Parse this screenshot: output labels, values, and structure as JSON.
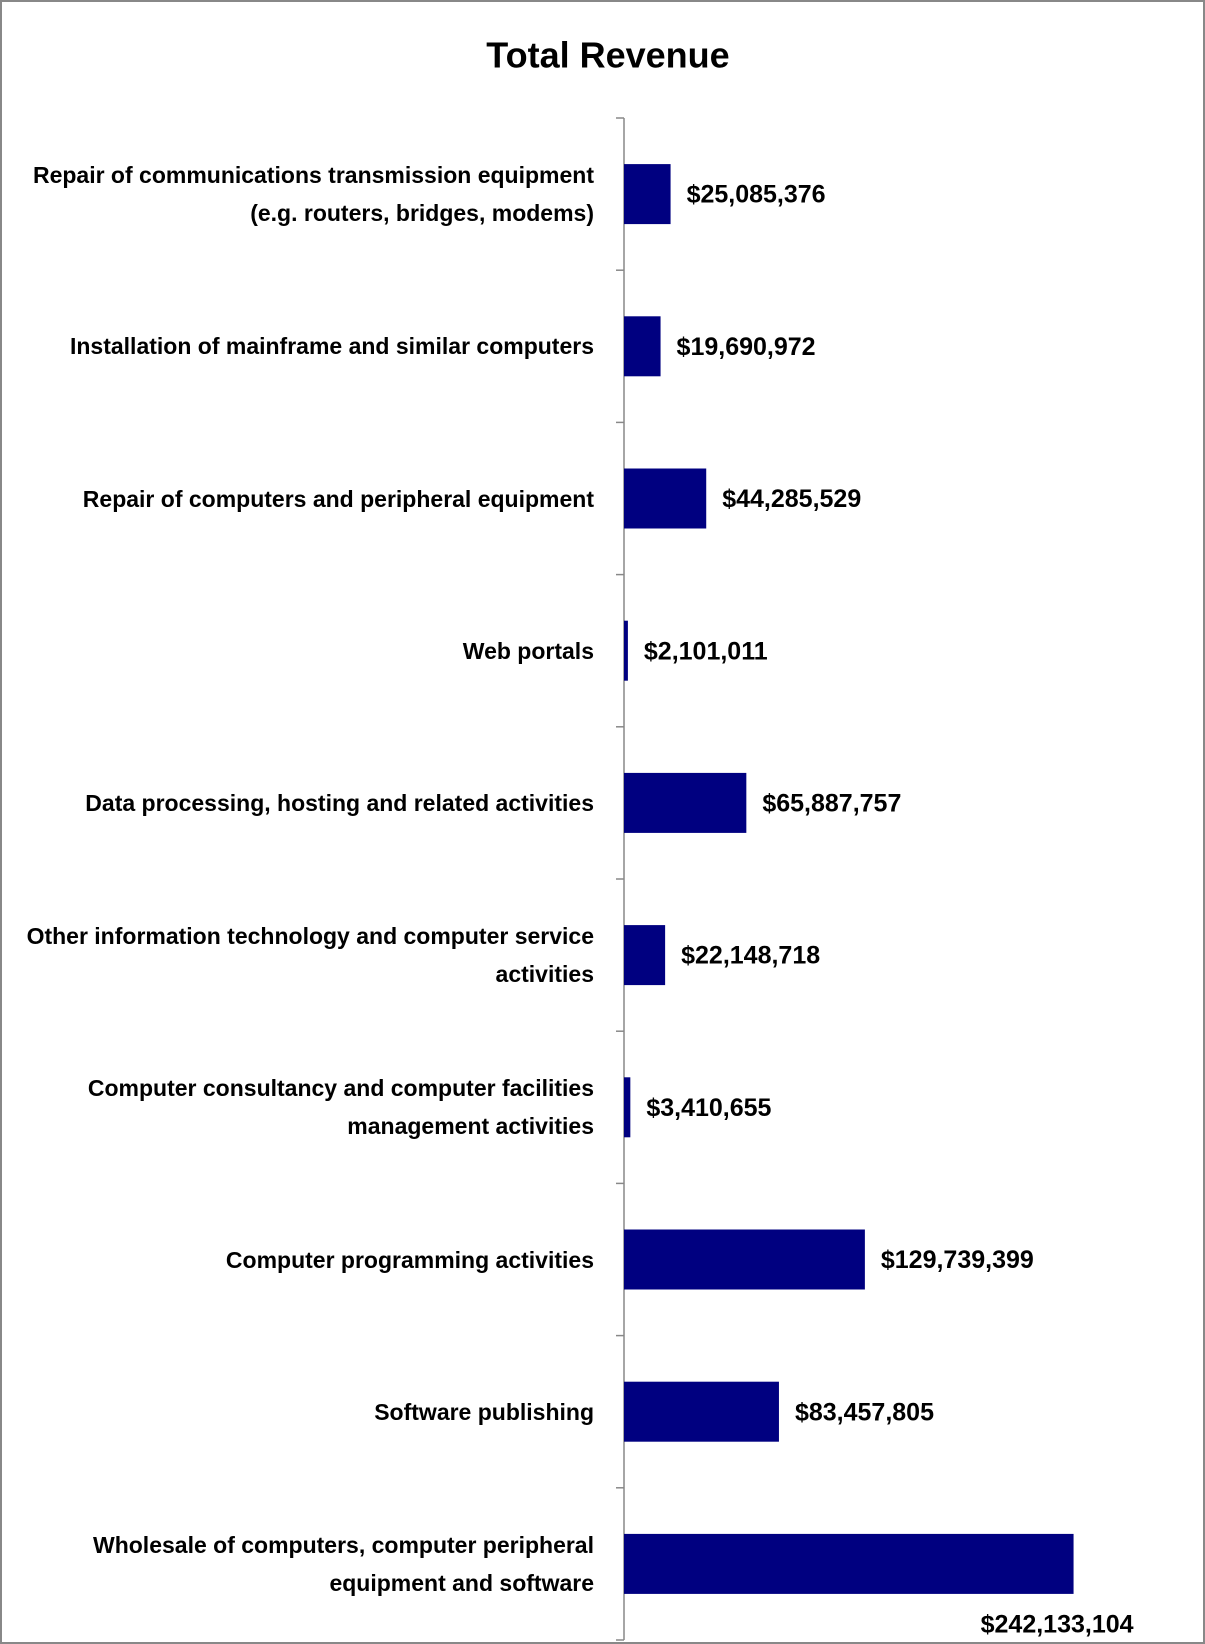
{
  "chart_data": {
    "type": "bar",
    "orientation": "horizontal",
    "title": "Total Revenue",
    "categories": [
      "Repair of communications transmission equipment (e.g. routers, bridges, modems)",
      "Installation of mainframe and similar computers",
      "Repair of computers and peripheral equipment",
      "Web portals",
      "Data processing, hosting and related activities",
      "Other information technology and computer service activities",
      "Computer consultancy and computer facilities management activities",
      "Computer programming activities",
      "Software publishing",
      "Wholesale of computers, computer peripheral equipment and software"
    ],
    "values": [
      25085376,
      19690972,
      44285529,
      2101011,
      65887757,
      22148718,
      3410655,
      129739399,
      83457805,
      242133104
    ],
    "value_labels": [
      "$25,085,376",
      "$19,690,972",
      "$44,285,529",
      "$2,101,011",
      "$65,887,757",
      "$22,148,718",
      "$3,410,655",
      "$129,739,399",
      "$83,457,805",
      "$242,133,104"
    ],
    "color": "#000080",
    "xlim": [
      0,
      300000000
    ]
  }
}
